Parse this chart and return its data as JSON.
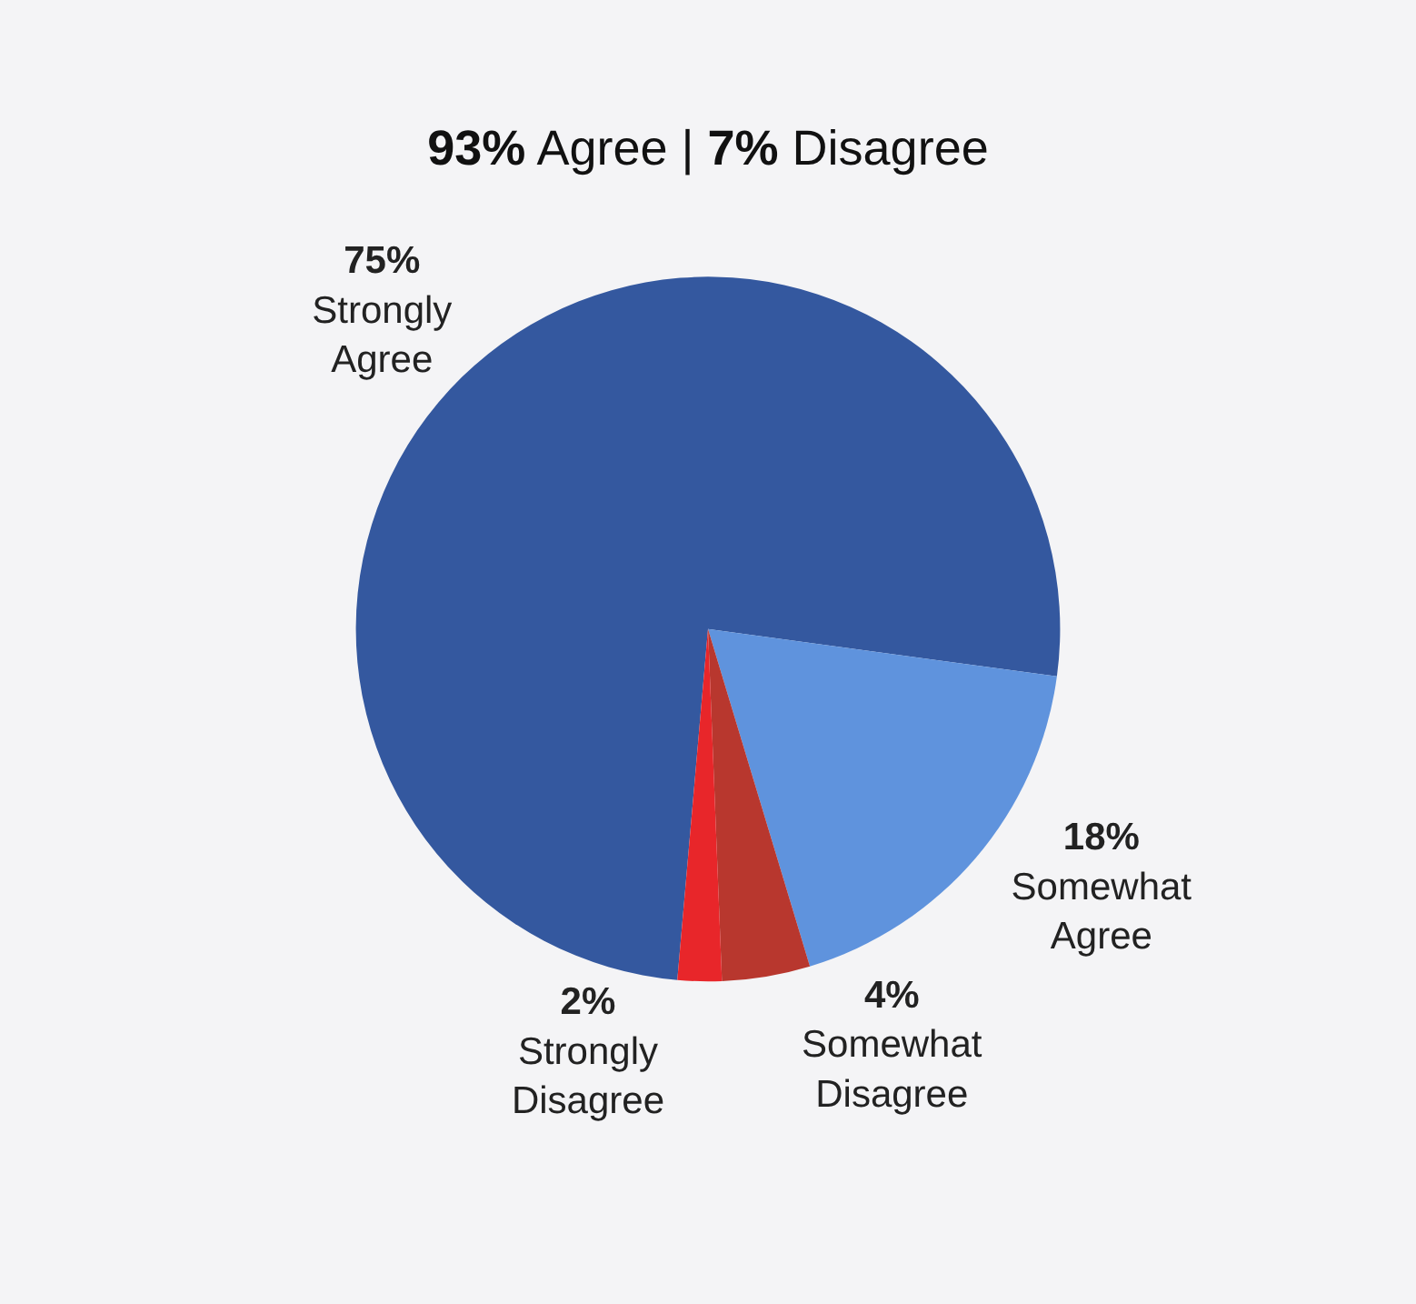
{
  "chart_data": {
    "type": "pie",
    "title": "93% Agree | 7% Disagree",
    "categories": [
      "Strongly Agree",
      "Somewhat Agree",
      "Somewhat Disagree",
      "Strongly Disagree"
    ],
    "values": [
      75,
      18,
      4,
      2
    ],
    "value_labels": [
      "75%",
      "18%",
      "4%",
      "2%"
    ],
    "colors": [
      "#34589f",
      "#5f93dd",
      "#b8372e",
      "#e8262a"
    ],
    "legend": false
  }
}
